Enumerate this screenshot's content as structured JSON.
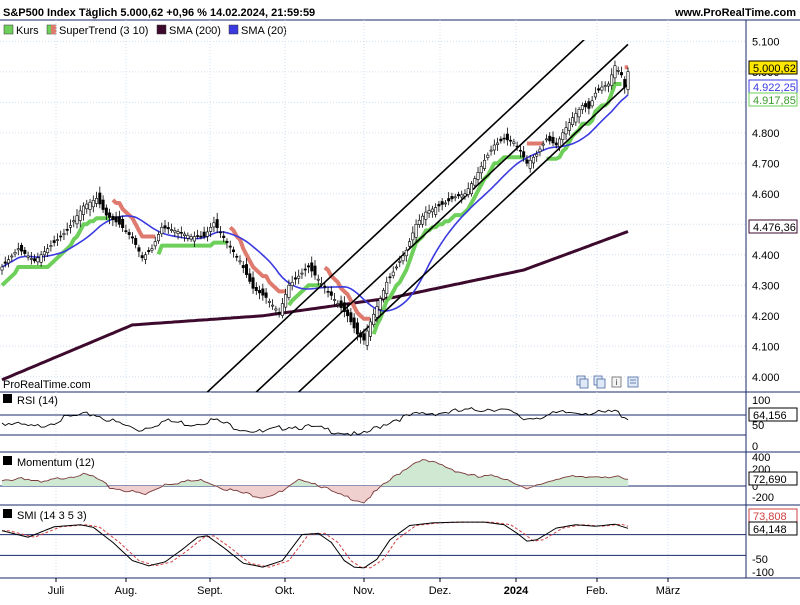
{
  "header": {
    "title": "S&P500 Index Täglich 5.000,62 +0,96 % 14.02.2024, 21:59:59",
    "site": "www.ProRealTime.com"
  },
  "watermark": "ProRealTime.com",
  "colors": {
    "background": "#ffffff",
    "grid": "#cfe0f0",
    "candle_border": "#000000",
    "candle_fill": "#ffffff",
    "supertrend_up": "#6ed05a",
    "supertrend_down": "#df7a6e",
    "sma200": "#3d0a2e",
    "sma20": "#3a3ae0",
    "channel": "#000000",
    "separator": "#1a2a6c"
  },
  "chart_data": [
    {
      "type": "candlestick",
      "name": "main-price",
      "title": "S&P500 Index Täglich 5.000,62 +0,96 % 14.02.2024, 21:59:59",
      "legend": [
        {
          "label": "Kurs",
          "color": "#6ed05a"
        },
        {
          "label": "SuperTrend (3 10)",
          "color": "#6ed05a"
        },
        {
          "label": "SMA (200)",
          "color": "#3d0a2e"
        },
        {
          "label": "SMA (20)",
          "color": "#3a3ae0"
        }
      ],
      "x_ticks": [
        "Juli",
        "Aug.",
        "Sept.",
        "Okt.",
        "Nov.",
        "Dez.",
        "2024",
        "Feb.",
        "März"
      ],
      "y_ticks": [
        4000,
        4100,
        4200,
        4300,
        4400,
        4500,
        4600,
        4700,
        4800,
        4900,
        5000,
        5100
      ],
      "y_tick_labels": [
        "4.000",
        "4.100",
        "4.200",
        "4.300",
        "4.400",
        "4.500",
        "4.600",
        "4.700",
        "4.800",
        "4.900",
        "5.000",
        "5.100"
      ],
      "ylim": [
        3950,
        5170
      ],
      "last_values": [
        {
          "label": "5.000,62",
          "value": 5000.62,
          "style": "price"
        },
        {
          "label": "4.922,25",
          "value": 4922.25,
          "style": "sma20"
        },
        {
          "label": "4.917,85",
          "value": 4917.85,
          "style": "supertrend"
        },
        {
          "label": "4.476,36",
          "value": 4476.36,
          "style": "sma200"
        }
      ],
      "close_anchors": [
        [
          0,
          4360
        ],
        [
          5,
          4420
        ],
        [
          10,
          4380
        ],
        [
          15,
          4430
        ],
        [
          20,
          4480
        ],
        [
          25,
          4560
        ],
        [
          29,
          4585
        ],
        [
          32,
          4530
        ],
        [
          36,
          4500
        ],
        [
          40,
          4455
        ],
        [
          43,
          4390
        ],
        [
          46,
          4420
        ],
        [
          49,
          4490
        ],
        [
          53,
          4480
        ],
        [
          58,
          4460
        ],
        [
          62,
          4460
        ],
        [
          65,
          4505
        ],
        [
          69,
          4440
        ],
        [
          73,
          4380
        ],
        [
          77,
          4290
        ],
        [
          81,
          4260
        ],
        [
          85,
          4210
        ],
        [
          88,
          4300
        ],
        [
          91,
          4330
        ],
        [
          94,
          4360
        ],
        [
          97,
          4320
        ],
        [
          100,
          4280
        ],
        [
          103,
          4240
        ],
        [
          106,
          4200
        ],
        [
          109,
          4140
        ],
        [
          111,
          4120
        ],
        [
          113,
          4180
        ],
        [
          115,
          4230
        ],
        [
          118,
          4310
        ],
        [
          121,
          4360
        ],
        [
          124,
          4415
        ],
        [
          127,
          4500
        ],
        [
          130,
          4540
        ],
        [
          133,
          4555
        ],
        [
          136,
          4570
        ],
        [
          139,
          4590
        ],
        [
          142,
          4600
        ],
        [
          145,
          4650
        ],
        [
          148,
          4710
        ],
        [
          151,
          4760
        ],
        [
          154,
          4780
        ],
        [
          157,
          4770
        ],
        [
          159,
          4740
        ],
        [
          161,
          4700
        ],
        [
          164,
          4730
        ],
        [
          167,
          4780
        ],
        [
          170,
          4760
        ],
        [
          172,
          4800
        ],
        [
          175,
          4850
        ],
        [
          178,
          4890
        ],
        [
          180,
          4880
        ],
        [
          182,
          4930
        ],
        [
          184,
          4950
        ],
        [
          186,
          4960
        ],
        [
          188,
          5020
        ],
        [
          190,
          4990
        ],
        [
          191,
          4950
        ],
        [
          192,
          5000.62
        ]
      ],
      "sma200_anchors": [
        [
          0,
          3990
        ],
        [
          40,
          4170
        ],
        [
          80,
          4200
        ],
        [
          120,
          4260
        ],
        [
          160,
          4350
        ],
        [
          192,
          4476.36
        ]
      ],
      "channel_lines": [
        {
          "x0": 60,
          "y0": 3920,
          "x1": 192,
          "y1": 5240
        },
        {
          "x0": 75,
          "y0": 3920,
          "x1": 192,
          "y1": 5090
        },
        {
          "x0": 88,
          "y0": 3920,
          "x1": 192,
          "y1": 4960
        }
      ]
    },
    {
      "type": "line",
      "name": "rsi",
      "legend": [
        {
          "label": "RSI (14)",
          "color": "#000000"
        }
      ],
      "y_ticks": [
        100,
        50,
        0
      ],
      "y_tick_labels": [
        "100",
        "50",
        "0"
      ],
      "ylim": [
        0,
        100
      ],
      "last_value": {
        "label": "64,156",
        "value": 64.156
      },
      "anchors": [
        [
          0,
          55
        ],
        [
          10,
          45
        ],
        [
          20,
          65
        ],
        [
          28,
          72
        ],
        [
          35,
          55
        ],
        [
          42,
          40
        ],
        [
          50,
          58
        ],
        [
          58,
          52
        ],
        [
          65,
          60
        ],
        [
          72,
          45
        ],
        [
          80,
          35
        ],
        [
          88,
          48
        ],
        [
          95,
          45
        ],
        [
          100,
          40
        ],
        [
          105,
          35
        ],
        [
          110,
          28
        ],
        [
          115,
          45
        ],
        [
          120,
          60
        ],
        [
          128,
          72
        ],
        [
          135,
          75
        ],
        [
          142,
          78
        ],
        [
          148,
          82
        ],
        [
          152,
          83
        ],
        [
          156,
          75
        ],
        [
          160,
          62
        ],
        [
          166,
          68
        ],
        [
          172,
          74
        ],
        [
          178,
          76
        ],
        [
          184,
          73
        ],
        [
          188,
          77
        ],
        [
          192,
          64.156
        ]
      ]
    },
    {
      "type": "area",
      "name": "momentum",
      "legend": [
        {
          "label": "Momentum (12)",
          "color": "#000000"
        }
      ],
      "y_ticks": [
        400,
        200,
        0,
        -200
      ],
      "y_tick_labels": [
        "400",
        "200",
        "0",
        "-200"
      ],
      "ylim": [
        -300,
        460
      ],
      "last_value": {
        "label": "72,690",
        "value": 72.69
      },
      "anchors": [
        [
          0,
          60
        ],
        [
          6,
          120
        ],
        [
          12,
          40
        ],
        [
          18,
          110
        ],
        [
          24,
          160
        ],
        [
          28,
          130
        ],
        [
          33,
          -20
        ],
        [
          38,
          -60
        ],
        [
          44,
          -120
        ],
        [
          50,
          30
        ],
        [
          56,
          60
        ],
        [
          62,
          80
        ],
        [
          68,
          -30
        ],
        [
          74,
          -100
        ],
        [
          80,
          -150
        ],
        [
          86,
          -80
        ],
        [
          92,
          100
        ],
        [
          97,
          20
        ],
        [
          103,
          -120
        ],
        [
          108,
          -180
        ],
        [
          111,
          -220
        ],
        [
          114,
          -100
        ],
        [
          119,
          80
        ],
        [
          124,
          250
        ],
        [
          128,
          360
        ],
        [
          134,
          300
        ],
        [
          140,
          200
        ],
        [
          146,
          120
        ],
        [
          152,
          140
        ],
        [
          157,
          60
        ],
        [
          161,
          -60
        ],
        [
          166,
          40
        ],
        [
          172,
          130
        ],
        [
          178,
          110
        ],
        [
          183,
          140
        ],
        [
          188,
          130
        ],
        [
          192,
          72.69
        ]
      ],
      "baseline": 0
    },
    {
      "type": "line",
      "name": "smi",
      "legend": [
        {
          "label": "SMI (14 3 5 3)",
          "color": "#000000"
        }
      ],
      "y_ticks": [
        -50,
        -100
      ],
      "y_tick_labels": [
        "-50",
        "-100"
      ],
      "ylim": [
        -110,
        110
      ],
      "last_values": [
        {
          "label": "73,808",
          "value": 73.808,
          "style": "signal"
        },
        {
          "label": "64,148",
          "value": 64.148,
          "style": "main"
        }
      ],
      "anchors": [
        [
          0,
          55
        ],
        [
          8,
          30
        ],
        [
          16,
          70
        ],
        [
          24,
          78
        ],
        [
          28,
          68
        ],
        [
          34,
          10
        ],
        [
          40,
          -60
        ],
        [
          45,
          -80
        ],
        [
          50,
          -65
        ],
        [
          55,
          -20
        ],
        [
          60,
          30
        ],
        [
          63,
          35
        ],
        [
          68,
          -10
        ],
        [
          74,
          -70
        ],
        [
          80,
          -85
        ],
        [
          86,
          -60
        ],
        [
          92,
          40
        ],
        [
          97,
          45
        ],
        [
          101,
          10
        ],
        [
          105,
          -60
        ],
        [
          108,
          -85
        ],
        [
          111,
          -88
        ],
        [
          115,
          -55
        ],
        [
          119,
          20
        ],
        [
          125,
          75
        ],
        [
          132,
          85
        ],
        [
          140,
          88
        ],
        [
          148,
          88
        ],
        [
          154,
          78
        ],
        [
          158,
          45
        ],
        [
          161,
          15
        ],
        [
          164,
          20
        ],
        [
          170,
          65
        ],
        [
          176,
          78
        ],
        [
          182,
          72
        ],
        [
          188,
          80
        ],
        [
          192,
          64.148
        ]
      ],
      "signal_lag": 2
    }
  ],
  "chart_toolbar_icons": [
    "copy-icon",
    "copy-icon",
    "info-icon",
    "image-icon"
  ]
}
